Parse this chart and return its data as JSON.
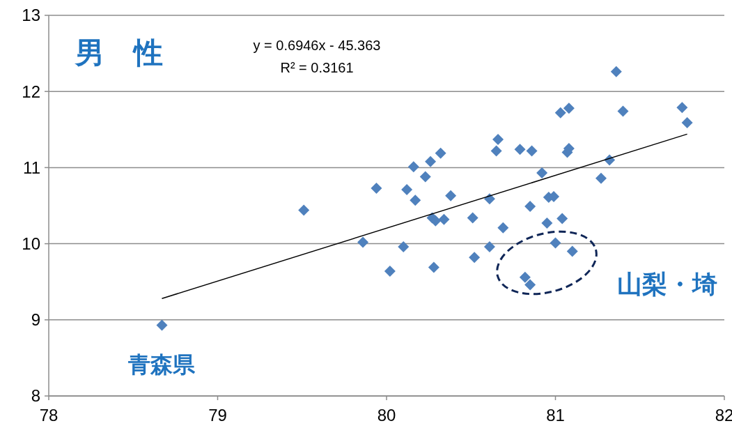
{
  "chart_data": {
    "type": "scatter",
    "title": "男　性",
    "xlim": [
      78,
      82
    ],
    "xticks": [
      78,
      79,
      80,
      81,
      82
    ],
    "ylim": [
      8,
      13
    ],
    "yticks": [
      8,
      9,
      10,
      11,
      12,
      13
    ],
    "grid": "y",
    "marker": "diamond",
    "annotations": [
      "y = 0.6946x - 45.363",
      "R² = 0.3161",
      {
        "text": "青森県",
        "x": 78.67,
        "y": 8.93
      },
      "山梨・埼"
    ],
    "series": [
      {
        "color": "#4f81bd",
        "x": [
          78.67,
          79.51,
          79.86,
          79.94,
          80.02,
          80.1,
          80.12,
          80.16,
          80.17,
          80.23,
          80.26,
          80.27,
          80.28,
          80.32,
          80.34,
          80.38,
          80.51,
          80.52,
          80.61,
          80.61,
          80.65,
          80.66,
          80.69,
          80.79,
          80.82,
          80.85,
          80.85,
          80.86,
          80.92,
          80.95,
          80.96,
          80.99,
          81.0,
          81.03,
          81.04,
          81.07,
          81.08,
          81.08,
          81.1,
          81.27,
          81.32,
          81.36,
          81.4,
          81.75,
          81.78,
          80.29
        ],
        "values": [
          8.93,
          10.44,
          10.02,
          10.73,
          9.64,
          9.96,
          10.71,
          11.01,
          10.57,
          10.88,
          11.08,
          10.34,
          9.69,
          11.19,
          10.32,
          10.63,
          10.34,
          9.82,
          10.59,
          9.96,
          11.22,
          11.37,
          10.21,
          11.24,
          9.56,
          9.46,
          10.49,
          11.22,
          10.93,
          10.27,
          10.61,
          10.62,
          10.01,
          11.72,
          10.33,
          11.2,
          11.78,
          11.25,
          9.9,
          10.86,
          11.1,
          12.26,
          11.74,
          11.79,
          11.59,
          10.3
        ]
      },
      {
        "type": "line",
        "color": "#000000",
        "x": [
          78.67,
          81.78
        ],
        "values": [
          9.28,
          11.44
        ],
        "marker": "none"
      }
    ]
  }
}
